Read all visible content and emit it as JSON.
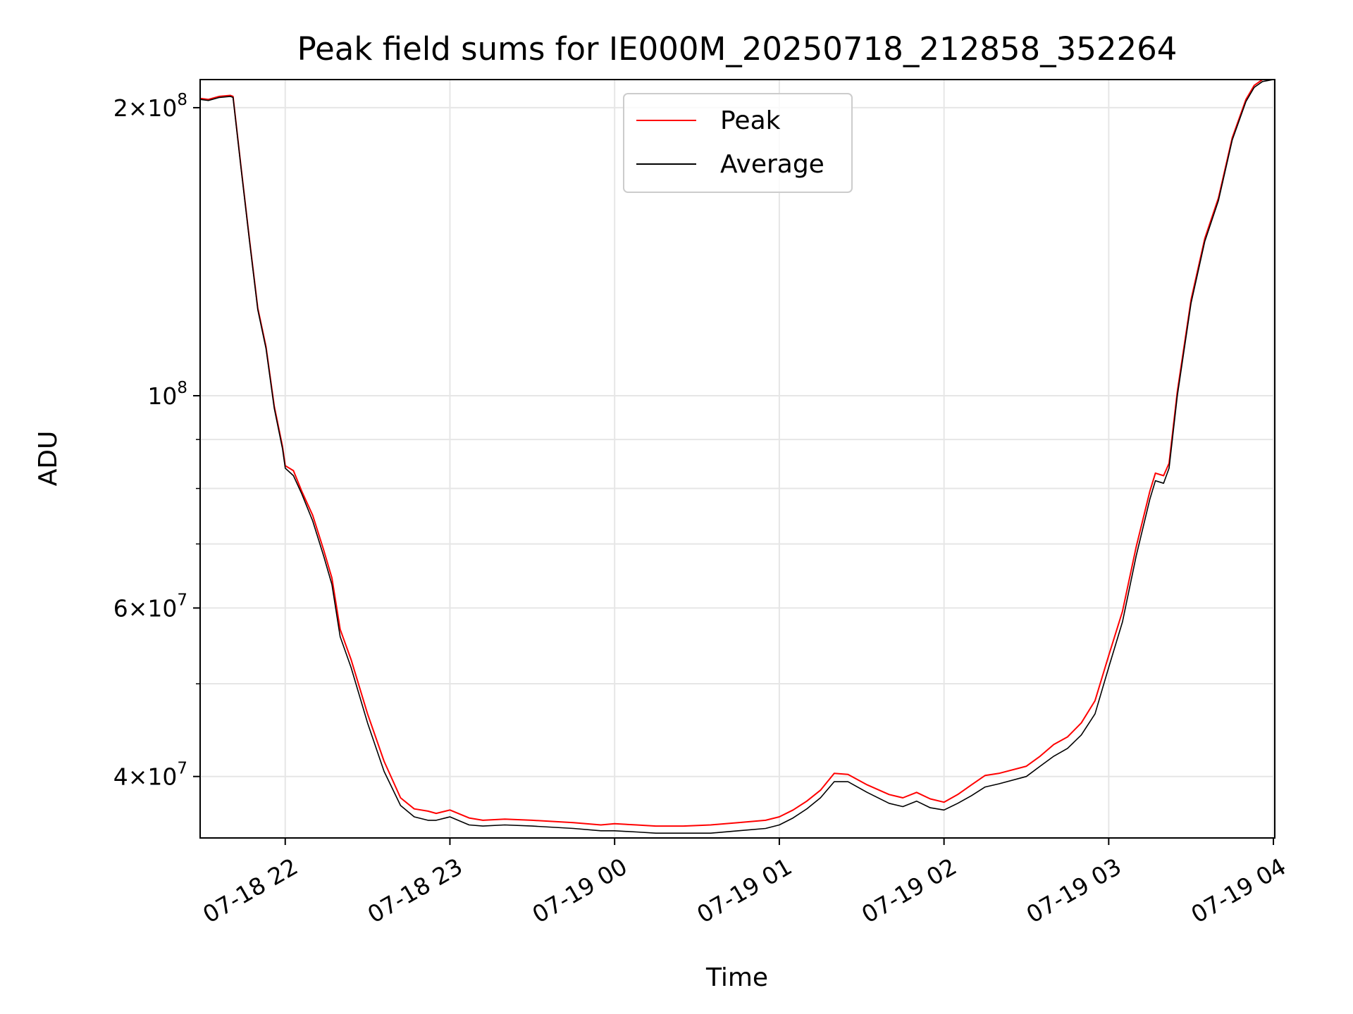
{
  "chart_data": {
    "type": "line",
    "title": "Peak field sums for IE000M_20250718_212858_352264",
    "xlabel": "Time",
    "ylabel": "ADU",
    "yscale": "log",
    "xlim": [
      "2025-07-18T21:29:00",
      "2025-07-19T04:00:30"
    ],
    "ylim": [
      34500000,
      214000000
    ],
    "grid": true,
    "legend": {
      "placement": "upper center",
      "entries": [
        "Peak",
        "Average"
      ]
    },
    "colors": {
      "Peak": "#ff0000",
      "Average": "#000000"
    },
    "x_ticks": [
      {
        "value": "2025-07-18T22:00:00",
        "label": "07-18 22"
      },
      {
        "value": "2025-07-18T23:00:00",
        "label": "07-18 23"
      },
      {
        "value": "2025-07-19T00:00:00",
        "label": "07-19 00"
      },
      {
        "value": "2025-07-19T01:00:00",
        "label": "07-19 01"
      },
      {
        "value": "2025-07-19T02:00:00",
        "label": "07-19 02"
      },
      {
        "value": "2025-07-19T03:00:00",
        "label": "07-19 03"
      },
      {
        "value": "2025-07-19T04:00:00",
        "label": "07-19 04"
      }
    ],
    "y_major_ticks": [
      {
        "value": 40000000,
        "mant": "4",
        "exp": "7"
      },
      {
        "value": 60000000,
        "mant": "6",
        "exp": "7"
      },
      {
        "value": 100000000,
        "mant": "",
        "exp": "8"
      },
      {
        "value": 200000000,
        "mant": "2",
        "exp": "8"
      }
    ],
    "y_minor_ticks": [
      50000000,
      70000000,
      80000000,
      90000000
    ],
    "series": [
      {
        "name": "Average",
        "x": [
          "2025-07-18T21:29:00",
          "2025-07-18T21:32:00",
          "2025-07-18T21:36:00",
          "2025-07-18T21:40:00",
          "2025-07-18T21:41:00",
          "2025-07-18T21:44:00",
          "2025-07-18T21:47:00",
          "2025-07-18T21:50:00",
          "2025-07-18T21:53:00",
          "2025-07-18T21:56:00",
          "2025-07-18T21:59:00",
          "2025-07-18T22:00:00",
          "2025-07-18T22:03:00",
          "2025-07-18T22:06:00",
          "2025-07-18T22:10:00",
          "2025-07-18T22:14:00",
          "2025-07-18T22:17:00",
          "2025-07-18T22:20:00",
          "2025-07-18T22:24:00",
          "2025-07-18T22:30:00",
          "2025-07-18T22:36:00",
          "2025-07-18T22:42:00",
          "2025-07-18T22:47:00",
          "2025-07-18T22:52:00",
          "2025-07-18T22:55:00",
          "2025-07-18T23:00:00",
          "2025-07-18T23:07:00",
          "2025-07-18T23:12:00",
          "2025-07-18T23:20:00",
          "2025-07-18T23:30:00",
          "2025-07-18T23:45:00",
          "2025-07-18T23:55:00",
          "2025-07-19T00:00:00",
          "2025-07-19T00:08:00",
          "2025-07-19T00:15:00",
          "2025-07-19T00:25:00",
          "2025-07-19T00:35:00",
          "2025-07-19T00:45:00",
          "2025-07-19T00:55:00",
          "2025-07-19T01:00:00",
          "2025-07-19T01:05:00",
          "2025-07-19T01:10:00",
          "2025-07-19T01:15:00",
          "2025-07-19T01:20:00",
          "2025-07-19T01:25:00",
          "2025-07-19T01:32:00",
          "2025-07-19T01:40:00",
          "2025-07-19T01:45:00",
          "2025-07-19T01:50:00",
          "2025-07-19T01:55:00",
          "2025-07-19T02:00:00",
          "2025-07-19T02:05:00",
          "2025-07-19T02:10:00",
          "2025-07-19T02:15:00",
          "2025-07-19T02:20:00",
          "2025-07-19T02:30:00",
          "2025-07-19T02:35:00",
          "2025-07-19T02:40:00",
          "2025-07-19T02:45:00",
          "2025-07-19T02:50:00",
          "2025-07-19T02:55:00",
          "2025-07-19T03:00:00",
          "2025-07-19T03:05:00",
          "2025-07-19T03:10:00",
          "2025-07-19T03:15:00",
          "2025-07-19T03:17:00",
          "2025-07-19T03:20:00",
          "2025-07-19T03:22:00",
          "2025-07-19T03:25:00",
          "2025-07-19T03:30:00",
          "2025-07-19T03:35:00",
          "2025-07-19T03:40:00",
          "2025-07-19T03:45:00",
          "2025-07-19T03:50:00",
          "2025-07-19T03:53:00",
          "2025-07-19T03:56:00",
          "2025-07-19T04:00:00"
        ],
        "values": [
          204000000,
          203500000,
          205000000,
          205500000,
          205000000,
          172000000,
          145000000,
          123000000,
          112000000,
          97000000,
          88000000,
          84000000,
          82500000,
          79000000,
          74000000,
          68000000,
          63500000,
          56000000,
          52000000,
          45500000,
          40500000,
          37300000,
          36300000,
          36000000,
          36000000,
          36300000,
          35600000,
          35500000,
          35600000,
          35500000,
          35300000,
          35100000,
          35100000,
          35000000,
          34900000,
          34900000,
          34900000,
          35100000,
          35300000,
          35600000,
          36200000,
          37000000,
          38000000,
          39500000,
          39500000,
          38500000,
          37500000,
          37200000,
          37700000,
          37100000,
          36900000,
          37500000,
          38200000,
          39000000,
          39300000,
          40000000,
          41000000,
          42000000,
          42800000,
          44200000,
          46500000,
          52000000,
          58000000,
          68000000,
          78000000,
          81500000,
          81000000,
          84000000,
          100000000,
          125000000,
          145000000,
          160000000,
          185000000,
          203000000,
          210000000,
          213000000,
          214000000
        ]
      },
      {
        "name": "Peak",
        "x": [
          "2025-07-18T21:29:00",
          "2025-07-18T21:32:00",
          "2025-07-18T21:36:00",
          "2025-07-18T21:40:00",
          "2025-07-18T21:41:00",
          "2025-07-18T21:44:00",
          "2025-07-18T21:47:00",
          "2025-07-18T21:50:00",
          "2025-07-18T21:53:00",
          "2025-07-18T21:56:00",
          "2025-07-18T21:59:00",
          "2025-07-18T22:00:00",
          "2025-07-18T22:03:00",
          "2025-07-18T22:06:00",
          "2025-07-18T22:10:00",
          "2025-07-18T22:14:00",
          "2025-07-18T22:17:00",
          "2025-07-18T22:20:00",
          "2025-07-18T22:24:00",
          "2025-07-18T22:30:00",
          "2025-07-18T22:36:00",
          "2025-07-18T22:42:00",
          "2025-07-18T22:47:00",
          "2025-07-18T22:52:00",
          "2025-07-18T22:55:00",
          "2025-07-18T23:00:00",
          "2025-07-18T23:07:00",
          "2025-07-18T23:12:00",
          "2025-07-18T23:20:00",
          "2025-07-18T23:30:00",
          "2025-07-18T23:45:00",
          "2025-07-18T23:55:00",
          "2025-07-19T00:00:00",
          "2025-07-19T00:08:00",
          "2025-07-19T00:15:00",
          "2025-07-19T00:25:00",
          "2025-07-19T00:35:00",
          "2025-07-19T00:45:00",
          "2025-07-19T00:55:00",
          "2025-07-19T01:00:00",
          "2025-07-19T01:05:00",
          "2025-07-19T01:10:00",
          "2025-07-19T01:15:00",
          "2025-07-19T01:20:00",
          "2025-07-19T01:25:00",
          "2025-07-19T01:32:00",
          "2025-07-19T01:40:00",
          "2025-07-19T01:45:00",
          "2025-07-19T01:50:00",
          "2025-07-19T01:55:00",
          "2025-07-19T02:00:00",
          "2025-07-19T02:05:00",
          "2025-07-19T02:10:00",
          "2025-07-19T02:15:00",
          "2025-07-19T02:20:00",
          "2025-07-19T02:30:00",
          "2025-07-19T02:35:00",
          "2025-07-19T02:40:00",
          "2025-07-19T02:45:00",
          "2025-07-19T02:50:00",
          "2025-07-19T02:55:00",
          "2025-07-19T03:00:00",
          "2025-07-19T03:05:00",
          "2025-07-19T03:10:00",
          "2025-07-19T03:15:00",
          "2025-07-19T03:17:00",
          "2025-07-19T03:20:00",
          "2025-07-19T03:22:00",
          "2025-07-19T03:25:00",
          "2025-07-19T03:30:00",
          "2025-07-19T03:35:00",
          "2025-07-19T03:40:00",
          "2025-07-19T03:45:00",
          "2025-07-19T03:50:00",
          "2025-07-19T03:53:00",
          "2025-07-19T03:56:00",
          "2025-07-19T04:00:00"
        ],
        "values": [
          204500000,
          204000000,
          205500000,
          206000000,
          205500000,
          172500000,
          145500000,
          123500000,
          112500000,
          97500000,
          88500000,
          84500000,
          83500000,
          79500000,
          75000000,
          69000000,
          64500000,
          57000000,
          53000000,
          46500000,
          41500000,
          38000000,
          37000000,
          36800000,
          36600000,
          36900000,
          36200000,
          36000000,
          36100000,
          36000000,
          35800000,
          35600000,
          35700000,
          35600000,
          35500000,
          35500000,
          35600000,
          35800000,
          36000000,
          36300000,
          36900000,
          37700000,
          38700000,
          40300000,
          40200000,
          39200000,
          38300000,
          38000000,
          38500000,
          37900000,
          37600000,
          38300000,
          39200000,
          40100000,
          40300000,
          41000000,
          42000000,
          43200000,
          44000000,
          45500000,
          48000000,
          53500000,
          59500000,
          69500000,
          79500000,
          83000000,
          82500000,
          85000000,
          101000000,
          126000000,
          146000000,
          161000000,
          186000000,
          204000000,
          211000000,
          214000000,
          214500000
        ]
      }
    ]
  }
}
